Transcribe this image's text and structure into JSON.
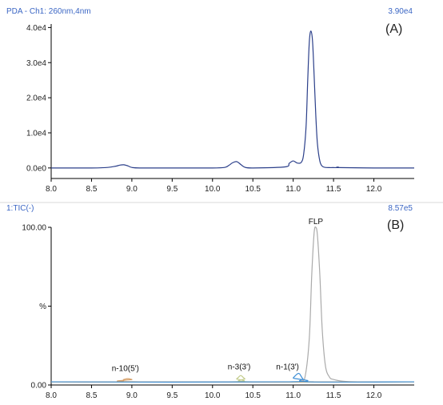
{
  "colors": {
    "header_text": "#3b66c4",
    "trace_a": "#2b3f8a",
    "separator": "#d8d8d8"
  },
  "chart_data": [
    {
      "type": "line",
      "header_left": "PDA - Ch1: 260nm,4nm",
      "header_right": "3.90e4",
      "panel_label": "(A)",
      "xlim": [
        8.0,
        12.5
      ],
      "ylim": [
        -3000,
        41000
      ],
      "x_ticks": [
        "8.0",
        "8.5",
        "9.0",
        "9.5",
        "10.0",
        "10.5",
        "11.0",
        "11.5",
        "12.0"
      ],
      "x_tick_values": [
        8.0,
        8.5,
        9.0,
        9.5,
        10.0,
        10.5,
        11.0,
        11.5,
        12.0
      ],
      "y_ticks": [
        "0.0e0",
        "1.0e4",
        "2.0e4",
        "3.0e4",
        "4.0e4"
      ],
      "y_tick_values": [
        0,
        10000,
        20000,
        30000,
        40000
      ],
      "series": [
        {
          "color": "#2b3f8a",
          "x": [
            8.0,
            8.5,
            8.7,
            8.8,
            8.85,
            8.9,
            8.95,
            9.0,
            9.1,
            9.5,
            10.0,
            10.15,
            10.2,
            10.25,
            10.3,
            10.35,
            10.4,
            10.5,
            10.9,
            10.95,
            11.0,
            11.05,
            11.1,
            11.13,
            11.16,
            11.18,
            11.2,
            11.22,
            11.24,
            11.26,
            11.28,
            11.3,
            11.33,
            11.36,
            11.4,
            11.45,
            11.5,
            11.55,
            11.56,
            11.57,
            12.0,
            12.5
          ],
          "values": [
            0,
            0,
            150,
            500,
            800,
            900,
            600,
            150,
            0,
            0,
            0,
            150,
            700,
            1500,
            1800,
            1000,
            200,
            0,
            300,
            1300,
            2000,
            1400,
            1600,
            4000,
            12000,
            25000,
            36000,
            39000,
            36000,
            26000,
            15000,
            7000,
            2000,
            500,
            150,
            100,
            100,
            100,
            250,
            100,
            0,
            0
          ]
        }
      ]
    },
    {
      "type": "line",
      "header_left": "1:TIC(-)",
      "header_right": "8.57e5",
      "panel_label": "(B)",
      "xlim": [
        8.0,
        12.5
      ],
      "ylim": [
        0,
        100
      ],
      "x_ticks": [
        "8.0",
        "8.5",
        "9.0",
        "9.5",
        "10.0",
        "10.5",
        "11.0",
        "11.5",
        "12.0"
      ],
      "x_tick_values": [
        8.0,
        8.5,
        9.0,
        9.5,
        10.0,
        10.5,
        11.0,
        11.5,
        12.0
      ],
      "y_ticks": [
        "0.00",
        "%",
        "100.00"
      ],
      "y_tick_values": [
        0,
        50,
        100
      ],
      "annotations": [
        {
          "text": "n-10(5')",
          "x": 8.92,
          "y": 9
        },
        {
          "text": "n-3(3')",
          "x": 10.33,
          "y": 10
        },
        {
          "text": "n-1(3')",
          "x": 10.93,
          "y": 10
        },
        {
          "text": "FLP",
          "x": 11.28,
          "y": 102
        }
      ],
      "series": [
        {
          "color": "#aaaaaa",
          "x": [
            8.0,
            11.0,
            11.1,
            11.15,
            11.2,
            11.23,
            11.26,
            11.28,
            11.3,
            11.33,
            11.36,
            11.4,
            11.45,
            11.5,
            11.6,
            11.8,
            12.5
          ],
          "values": [
            2,
            2,
            2.5,
            6,
            30,
            70,
            97,
            100,
            95,
            70,
            35,
            12,
            5,
            3.5,
            2.5,
            2,
            2
          ]
        },
        {
          "color": "#c3cc8c",
          "x": [
            8.0,
            10.2,
            10.3,
            10.35,
            10.4,
            10.5,
            12.5
          ],
          "values": [
            2,
            2,
            4,
            6,
            4,
            2,
            2
          ]
        },
        {
          "color": "#d6a06a",
          "x": [
            8.0,
            8.8,
            8.9,
            8.95,
            9.0,
            9.1,
            12.5
          ],
          "values": [
            2,
            2,
            3.5,
            4,
            3.5,
            2,
            2
          ]
        },
        {
          "color": "#3e8fd6",
          "x": [
            8.0,
            10.95,
            11.0,
            11.05,
            11.08,
            11.12,
            11.2,
            12.5
          ],
          "values": [
            2,
            2,
            4.5,
            7,
            7,
            4,
            2,
            2
          ]
        }
      ]
    }
  ]
}
